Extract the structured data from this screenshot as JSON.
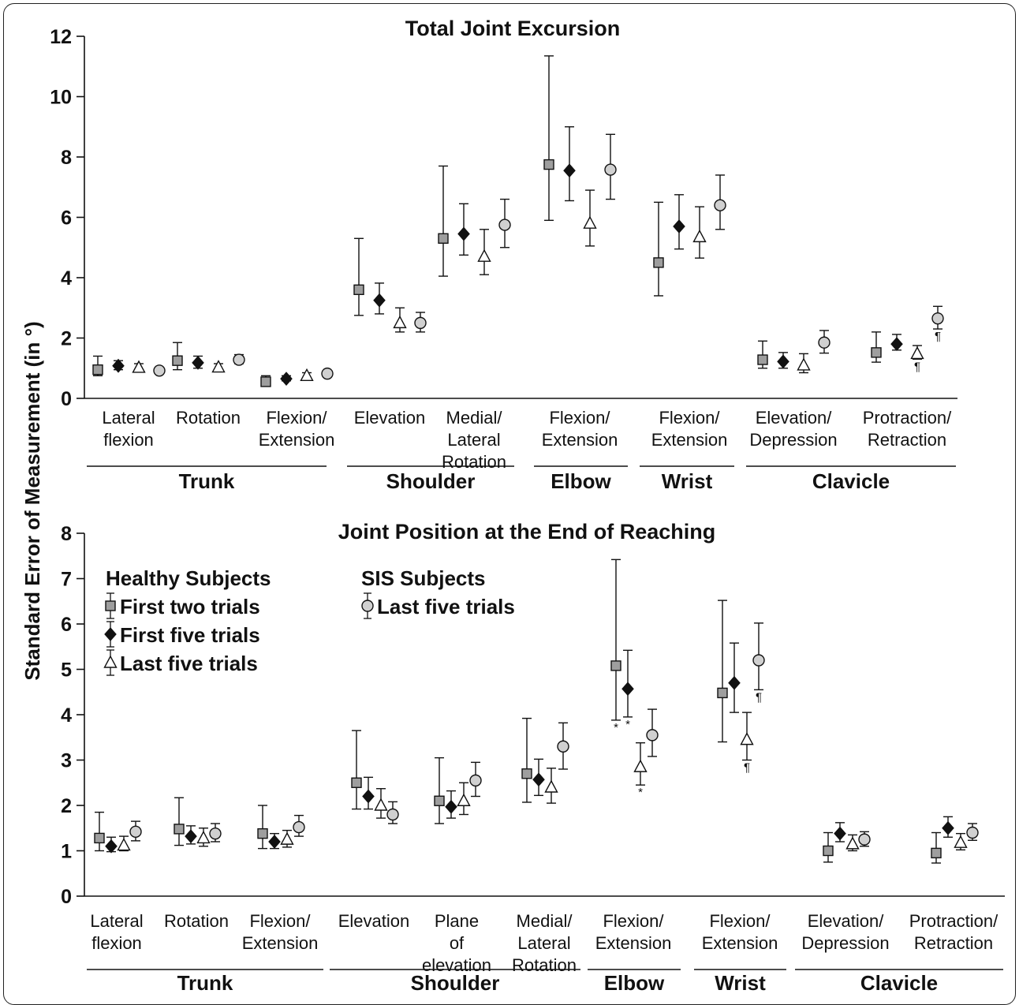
{
  "ylabel": "Standard Error of Measurement (in °)",
  "legend": {
    "healthy_title": "Healthy Subjects",
    "sis_title": "SIS Subjects",
    "items": [
      {
        "label": "First two trials",
        "marker": "square",
        "fill": "#9e9e9e"
      },
      {
        "label": "First five trials",
        "marker": "diamond",
        "fill": "#111111"
      },
      {
        "label": "Last five trials",
        "marker": "triangle",
        "fill": "#ffffff"
      },
      {
        "label": "Last five trials",
        "marker": "circle",
        "fill": "#d0d0d0"
      }
    ]
  },
  "chart_data": [
    {
      "type": "scatter",
      "title": "Total Joint Excursion",
      "ylim": [
        0,
        12
      ],
      "yticks": [
        0,
        2,
        4,
        6,
        8,
        10,
        12
      ],
      "series_markers": [
        "square",
        "diamond",
        "triangle",
        "circle"
      ],
      "categories": [
        {
          "label": [
            "Lateral",
            "flexion"
          ],
          "group": "Trunk",
          "points": [
            {
              "y": 0.95,
              "lo": 0.75,
              "hi": 1.4
            },
            {
              "y": 1.08,
              "lo": 0.95,
              "hi": 1.25
            },
            {
              "y": 1.02,
              "lo": 0.9,
              "hi": 1.15
            },
            {
              "y": 0.92,
              "lo": 0.85,
              "hi": 1.0
            }
          ]
        },
        {
          "label": [
            "Rotation"
          ],
          "group": "Trunk",
          "points": [
            {
              "y": 1.25,
              "lo": 0.95,
              "hi": 1.85
            },
            {
              "y": 1.18,
              "lo": 1.0,
              "hi": 1.4
            },
            {
              "y": 1.03,
              "lo": 0.9,
              "hi": 1.15
            },
            {
              "y": 1.28,
              "lo": 1.15,
              "hi": 1.45
            }
          ]
        },
        {
          "label": [
            "Flexion/",
            "Extension"
          ],
          "group": "Trunk",
          "points": [
            {
              "y": 0.55,
              "lo": 0.42,
              "hi": 0.75
            },
            {
              "y": 0.65,
              "lo": 0.58,
              "hi": 0.75
            },
            {
              "y": 0.75,
              "lo": 0.65,
              "hi": 0.85
            },
            {
              "y": 0.82,
              "lo": 0.72,
              "hi": 0.9
            }
          ]
        },
        {
          "label": [
            "Elevation"
          ],
          "group": "Shoulder",
          "points": [
            {
              "y": 3.6,
              "lo": 2.75,
              "hi": 5.3
            },
            {
              "y": 3.25,
              "lo": 2.8,
              "hi": 3.82
            },
            {
              "y": 2.5,
              "lo": 2.2,
              "hi": 3.0
            },
            {
              "y": 2.5,
              "lo": 2.2,
              "hi": 2.85
            }
          ]
        },
        {
          "label": [
            "Medial/",
            "Lateral",
            "Rotation"
          ],
          "group": "Shoulder",
          "points": [
            {
              "y": 5.3,
              "lo": 4.05,
              "hi": 7.7
            },
            {
              "y": 5.45,
              "lo": 4.75,
              "hi": 6.45
            },
            {
              "y": 4.7,
              "lo": 4.1,
              "hi": 5.6
            },
            {
              "y": 5.75,
              "lo": 5.0,
              "hi": 6.6
            }
          ]
        },
        {
          "label": [
            "Flexion/",
            "Extension"
          ],
          "group": "Elbow",
          "points": [
            {
              "y": 7.75,
              "lo": 5.9,
              "hi": 11.35
            },
            {
              "y": 7.55,
              "lo": 6.55,
              "hi": 9.0
            },
            {
              "y": 5.8,
              "lo": 5.05,
              "hi": 6.9
            },
            {
              "y": 7.58,
              "lo": 6.6,
              "hi": 8.75
            }
          ]
        },
        {
          "label": [
            "Flexion/",
            "Extension"
          ],
          "group": "Wrist",
          "points": [
            {
              "y": 4.5,
              "lo": 3.4,
              "hi": 6.5
            },
            {
              "y": 5.7,
              "lo": 4.95,
              "hi": 6.75
            },
            {
              "y": 5.35,
              "lo": 4.65,
              "hi": 6.35
            },
            {
              "y": 6.4,
              "lo": 5.6,
              "hi": 7.4
            }
          ]
        },
        {
          "label": [
            "Elevation/",
            "Depression"
          ],
          "group": "Clavicle",
          "points": [
            {
              "y": 1.28,
              "lo": 1.0,
              "hi": 1.9
            },
            {
              "y": 1.22,
              "lo": 1.0,
              "hi": 1.52
            },
            {
              "y": 1.1,
              "lo": 0.85,
              "hi": 1.48
            },
            {
              "y": 1.85,
              "lo": 1.5,
              "hi": 2.25
            }
          ]
        },
        {
          "label": [
            "Protraction/",
            "Retraction"
          ],
          "group": "Clavicle",
          "points": [
            {
              "y": 1.52,
              "lo": 1.2,
              "hi": 2.2
            },
            {
              "y": 1.8,
              "lo": 1.6,
              "hi": 2.12
            },
            {
              "y": 1.48,
              "lo": 1.3,
              "hi": 1.75,
              "note": "¶"
            },
            {
              "y": 2.65,
              "lo": 2.3,
              "hi": 3.05,
              "note": "¶"
            }
          ]
        }
      ],
      "groups": [
        "Trunk",
        "Shoulder",
        "Elbow",
        "Wrist",
        "Clavicle"
      ]
    },
    {
      "type": "scatter",
      "title": "Joint Position at the End of Reaching",
      "ylim": [
        0,
        8
      ],
      "yticks": [
        0,
        1,
        2,
        3,
        4,
        5,
        6,
        7,
        8
      ],
      "series_markers": [
        "square",
        "diamond",
        "triangle",
        "circle"
      ],
      "categories": [
        {
          "label": [
            "Lateral",
            "flexion"
          ],
          "group": "Trunk",
          "points": [
            {
              "y": 1.28,
              "lo": 1.0,
              "hi": 1.85
            },
            {
              "y": 1.1,
              "lo": 0.98,
              "hi": 1.3
            },
            {
              "y": 1.12,
              "lo": 1.0,
              "hi": 1.32
            },
            {
              "y": 1.42,
              "lo": 1.22,
              "hi": 1.65
            }
          ]
        },
        {
          "label": [
            "Rotation"
          ],
          "group": "Trunk",
          "points": [
            {
              "y": 1.48,
              "lo": 1.12,
              "hi": 2.17
            },
            {
              "y": 1.32,
              "lo": 1.15,
              "hi": 1.55
            },
            {
              "y": 1.28,
              "lo": 1.1,
              "hi": 1.5
            },
            {
              "y": 1.38,
              "lo": 1.2,
              "hi": 1.6
            }
          ]
        },
        {
          "label": [
            "Flexion/",
            "Extension"
          ],
          "group": "Trunk",
          "points": [
            {
              "y": 1.38,
              "lo": 1.05,
              "hi": 2.0
            },
            {
              "y": 1.2,
              "lo": 1.05,
              "hi": 1.38
            },
            {
              "y": 1.25,
              "lo": 1.08,
              "hi": 1.45
            },
            {
              "y": 1.52,
              "lo": 1.32,
              "hi": 1.78
            }
          ]
        },
        {
          "label": [
            "Elevation"
          ],
          "group": "Shoulder",
          "points": [
            {
              "y": 2.5,
              "lo": 1.92,
              "hi": 3.65
            },
            {
              "y": 2.2,
              "lo": 1.92,
              "hi": 2.62
            },
            {
              "y": 2.0,
              "lo": 1.72,
              "hi": 2.37
            },
            {
              "y": 1.8,
              "lo": 1.6,
              "hi": 2.08
            }
          ]
        },
        {
          "label": [
            "Plane",
            "of",
            "elevation"
          ],
          "group": "Shoulder",
          "points": [
            {
              "y": 2.1,
              "lo": 1.6,
              "hi": 3.05
            },
            {
              "y": 1.97,
              "lo": 1.72,
              "hi": 2.32
            },
            {
              "y": 2.1,
              "lo": 1.8,
              "hi": 2.5
            },
            {
              "y": 2.55,
              "lo": 2.2,
              "hi": 2.95
            }
          ]
        },
        {
          "label": [
            "Medial/",
            "Lateral",
            "Rotation"
          ],
          "group": "Shoulder",
          "points": [
            {
              "y": 2.7,
              "lo": 2.07,
              "hi": 3.92
            },
            {
              "y": 2.57,
              "lo": 2.22,
              "hi": 3.02
            },
            {
              "y": 2.4,
              "lo": 2.05,
              "hi": 2.82
            },
            {
              "y": 3.3,
              "lo": 2.8,
              "hi": 3.82
            }
          ]
        },
        {
          "label": [
            "Flexion/",
            "Extension"
          ],
          "group": "Elbow",
          "points": [
            {
              "y": 5.08,
              "lo": 3.88,
              "hi": 7.42,
              "note": "*"
            },
            {
              "y": 4.57,
              "lo": 3.95,
              "hi": 5.42,
              "note": "*"
            },
            {
              "y": 2.85,
              "lo": 2.45,
              "hi": 3.38,
              "note": "*"
            },
            {
              "y": 3.55,
              "lo": 3.08,
              "hi": 4.12
            }
          ]
        },
        {
          "label": [
            "Flexion/",
            "Extension"
          ],
          "group": "Wrist",
          "points": [
            {
              "y": 4.48,
              "lo": 3.4,
              "hi": 6.52
            },
            {
              "y": 4.7,
              "lo": 4.05,
              "hi": 5.58
            },
            {
              "y": 3.45,
              "lo": 3.0,
              "hi": 4.05,
              "note": "¶"
            },
            {
              "y": 5.2,
              "lo": 4.55,
              "hi": 6.02,
              "note": "¶"
            }
          ]
        },
        {
          "label": [
            "Elevation/",
            "Depression"
          ],
          "group": "Clavicle",
          "points": [
            {
              "y": 1.0,
              "lo": 0.75,
              "hi": 1.4
            },
            {
              "y": 1.38,
              "lo": 1.2,
              "hi": 1.62
            },
            {
              "y": 1.15,
              "lo": 1.0,
              "hi": 1.35
            },
            {
              "y": 1.25,
              "lo": 1.1,
              "hi": 1.42
            }
          ]
        },
        {
          "label": [
            "Protraction/",
            "Retraction"
          ],
          "group": "Clavicle",
          "points": [
            {
              "y": 0.95,
              "lo": 0.73,
              "hi": 1.4
            },
            {
              "y": 1.5,
              "lo": 1.3,
              "hi": 1.75
            },
            {
              "y": 1.18,
              "lo": 1.02,
              "hi": 1.38
            },
            {
              "y": 1.4,
              "lo": 1.23,
              "hi": 1.6
            }
          ]
        }
      ],
      "groups": [
        "Trunk",
        "Shoulder",
        "Elbow",
        "Wrist",
        "Clavicle"
      ]
    }
  ]
}
